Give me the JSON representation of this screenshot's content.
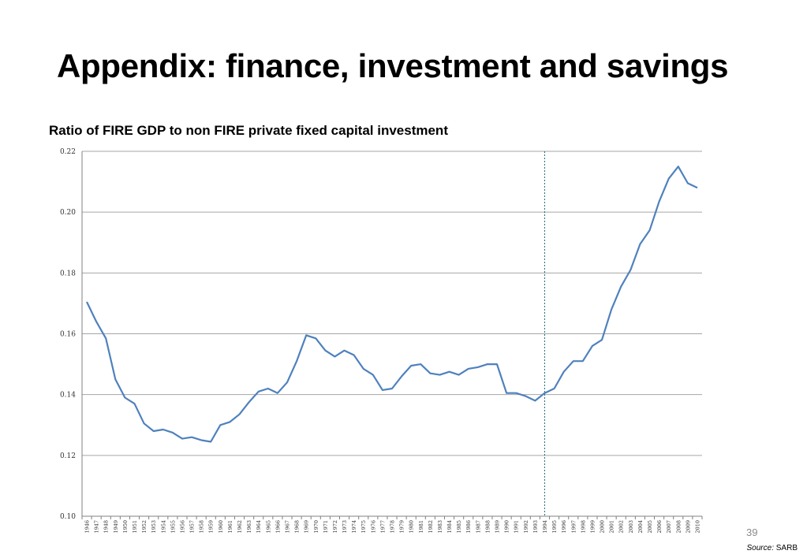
{
  "slide": {
    "title": "Appendix: finance, investment and savings",
    "page_number": "39",
    "source_label": "Source:",
    "source_value": "SARB"
  },
  "colors": {
    "line": "#4f81bd",
    "grid": "#a6a6a6",
    "axis": "#808080",
    "marker_line": "#1f6f78"
  },
  "chart_data": {
    "type": "line",
    "title": "Ratio of FIRE GDP to non FIRE private fixed capital investment",
    "xlabel": "",
    "ylabel": "",
    "ylim": [
      0.1,
      0.22
    ],
    "yticks": [
      "0.22",
      "0.20",
      "0.18",
      "0.16",
      "0.14",
      "0.12",
      "0.10"
    ],
    "grid": true,
    "legend": "none",
    "vertical_marker_year": "1994",
    "x": [
      "1946",
      "1947",
      "1948",
      "1949",
      "1950",
      "1951",
      "1952",
      "1953",
      "1954",
      "1955",
      "1956",
      "1957",
      "1958",
      "1959",
      "1960",
      "1961",
      "1962",
      "1963",
      "1964",
      "1965",
      "1966",
      "1967",
      "1968",
      "1969",
      "1970",
      "1971",
      "1972",
      "1973",
      "1974",
      "1975",
      "1976",
      "1977",
      "1978",
      "1979",
      "1980",
      "1981",
      "1982",
      "1983",
      "1984",
      "1985",
      "1986",
      "1987",
      "1988",
      "1989",
      "1990",
      "1991",
      "1992",
      "1993",
      "1994",
      "1995",
      "1996",
      "1997",
      "1998",
      "1999",
      "2000",
      "2001",
      "2002",
      "2003",
      "2004",
      "2005",
      "2006",
      "2007",
      "2008",
      "2009",
      "2010"
    ],
    "series": [
      {
        "values": [
          0.1705,
          0.164,
          0.1585,
          0.145,
          0.139,
          0.137,
          0.1305,
          0.128,
          0.1285,
          0.1275,
          0.1255,
          0.126,
          0.125,
          0.1245,
          0.13,
          0.131,
          0.1335,
          0.1375,
          0.141,
          0.142,
          0.1405,
          0.144,
          0.151,
          0.1595,
          0.1585,
          0.1545,
          0.1525,
          0.1545,
          0.153,
          0.1485,
          0.1465,
          0.1415,
          0.142,
          0.146,
          0.1495,
          0.15,
          0.147,
          0.1465,
          0.1475,
          0.1465,
          0.1485,
          0.149,
          0.15,
          0.15,
          0.1405,
          0.1405,
          0.1395,
          0.138,
          0.1405,
          0.142,
          0.1475,
          0.151,
          0.151,
          0.156,
          0.158,
          0.168,
          0.1755,
          0.181,
          0.1895,
          0.194,
          0.2035,
          0.211,
          0.215,
          0.2095,
          0.208
        ]
      }
    ]
  }
}
